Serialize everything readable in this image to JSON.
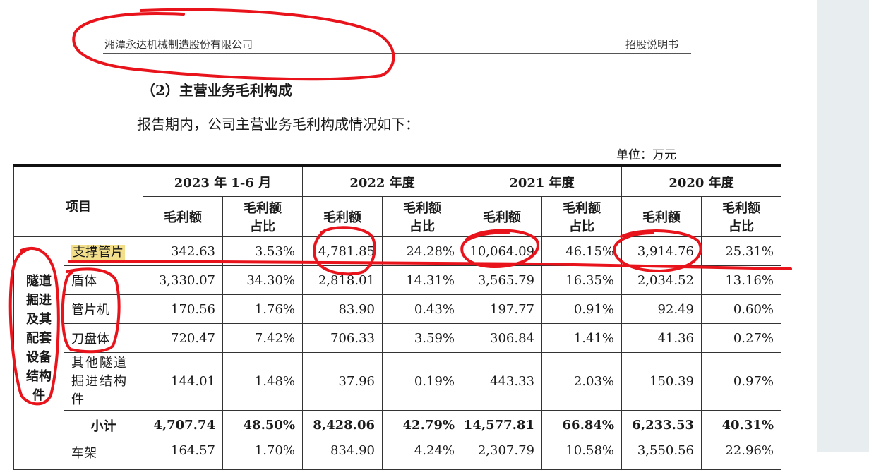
{
  "header": {
    "company": "湘潭永达机械制造股份有限公司",
    "doc_type": "招股说明书"
  },
  "section": {
    "title": "（2）主营业务毛利构成",
    "intro": "报告期内，公司主营业务毛利构成情况如下：",
    "unit": "单位：万元"
  },
  "table": {
    "item_header": "项目",
    "periods": [
      "2023 年 1-6 月",
      "2022 年度",
      "2021 年度",
      "2020 年度"
    ],
    "sub_headers": {
      "amount": "毛利额",
      "share_line1": "毛利额",
      "share_line2": "占比"
    },
    "group_label": [
      "隧道",
      "掘进",
      "及其",
      "配套",
      "设备",
      "结构",
      "件"
    ],
    "rows": [
      {
        "name": "支撑管片",
        "values": [
          "342.63",
          "3.53%",
          "4,781.85",
          "24.28%",
          "10,064.09",
          "46.15%",
          "3,914.76",
          "25.31%"
        ]
      },
      {
        "name": "盾体",
        "values": [
          "3,330.07",
          "34.30%",
          "2,818.01",
          "14.31%",
          "3,565.79",
          "16.35%",
          "2,034.52",
          "13.16%"
        ]
      },
      {
        "name": "管片机",
        "values": [
          "170.56",
          "1.76%",
          "83.90",
          "0.43%",
          "197.77",
          "0.91%",
          "92.49",
          "0.60%"
        ]
      },
      {
        "name": "刀盘体",
        "values": [
          "720.47",
          "7.42%",
          "706.33",
          "3.59%",
          "306.84",
          "1.41%",
          "41.36",
          "0.27%"
        ]
      },
      {
        "name_lines": [
          "其他隧道",
          "掘进结构",
          "件"
        ],
        "values": [
          "144.01",
          "1.48%",
          "37.96",
          "0.19%",
          "443.33",
          "2.03%",
          "150.39",
          "0.97%"
        ]
      }
    ],
    "subtotal": {
      "name": "小计",
      "values": [
        "4,707.74",
        "48.50%",
        "8,428.06",
        "42.79%",
        "14,577.81",
        "66.84%",
        "6,233.53",
        "40.31%"
      ]
    },
    "partial_row": {
      "name": "车架",
      "values": [
        "164.57",
        "1.70%",
        "834.90",
        "4.24%",
        "2,307.79",
        "10.58%",
        "3,550.56",
        "22.96%"
      ]
    }
  },
  "colors": {
    "annotation": "#e8131b",
    "highlight": "#f3df8a",
    "side_panel": "#e8eef0"
  }
}
